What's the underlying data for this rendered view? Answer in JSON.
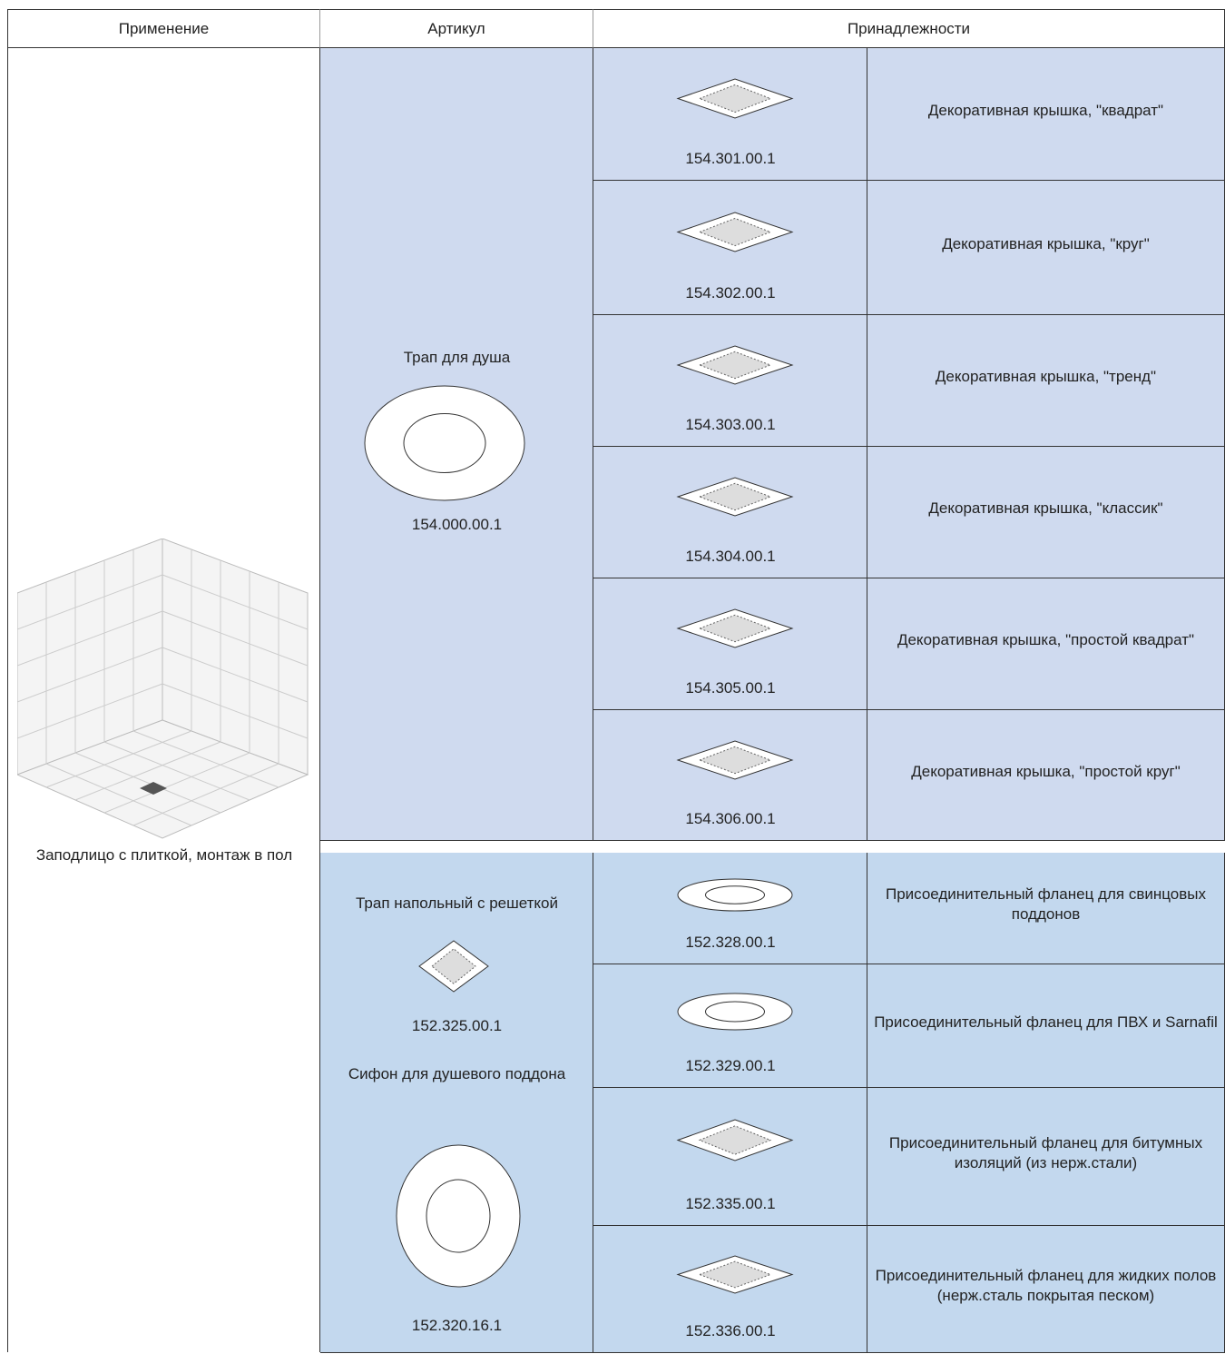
{
  "header": {
    "columns": [
      "Применение",
      "Артикул",
      "Принадлежности"
    ]
  },
  "application": "Заподлицо с плиткой, монтаж в пол",
  "groups": [
    {
      "articles": [
        {
          "name": "Трап для душа",
          "code": "154.000.00.1"
        }
      ],
      "accessories": [
        {
          "code": "154.301.00.1",
          "description": "Декоративная крышка, \"квадрат\""
        },
        {
          "code": "154.302.00.1",
          "description": "Декоративная крышка, \"круг\""
        },
        {
          "code": "154.303.00.1",
          "description": "Декоративная крышка, \"тренд\""
        },
        {
          "code": "154.304.00.1",
          "description": "Декоративная крышка, \"классик\""
        },
        {
          "code": "154.305.00.1",
          "description": "Декоративная крышка, \"простой квадрат\""
        },
        {
          "code": "154.306.00.1",
          "description": "Декоративная крышка, \"простой круг\""
        }
      ]
    },
    {
      "articles": [
        {
          "name": "Трап напольный с решеткой",
          "code": "152.325.00.1"
        },
        {
          "name": "Сифон для душевого поддона",
          "code": "152.320.16.1"
        }
      ],
      "accessories": [
        {
          "code": "152.328.00.1",
          "description": "Присоединительный фланец для свинцовых поддонов"
        },
        {
          "code": "152.329.00.1",
          "description": "Присоединительный фланец для ПВХ и Sarnafil"
        },
        {
          "code": "152.335.00.1",
          "description": "Присоединительный фланец для битумных изоляций (из нерж.стали)"
        },
        {
          "code": "152.336.00.1",
          "description": "Присоединительный фланец для жидких полов (нерж.сталь покрытая песком)"
        }
      ]
    }
  ]
}
